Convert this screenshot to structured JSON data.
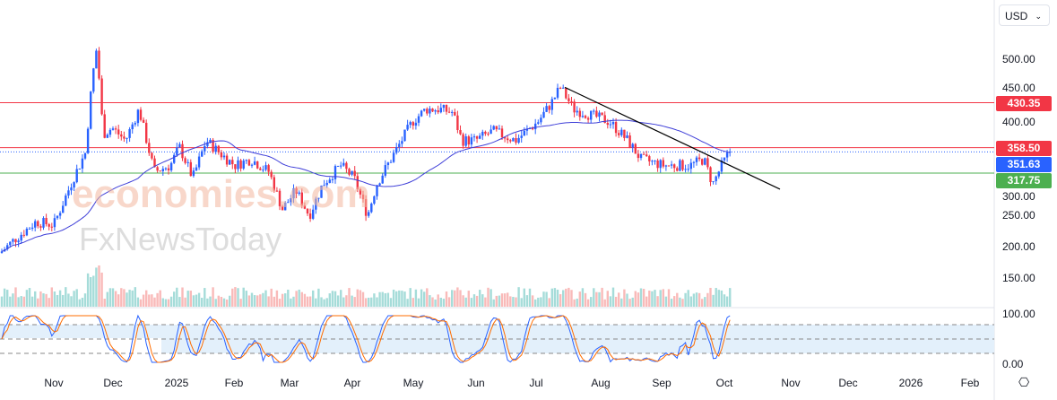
{
  "currency_selector": {
    "value": "USD"
  },
  "y_axis_ticks": [
    "500.00",
    "450.00",
    "400.00",
    "300.00",
    "250.00",
    "200.00",
    "150.00"
  ],
  "osc_axis_ticks": [
    "100.00",
    "0.00"
  ],
  "x_axis_ticks": [
    "Nov",
    "Dec",
    "2025",
    "Feb",
    "Mar",
    "Apr",
    "May",
    "Jun",
    "Jul",
    "Aug",
    "Sep",
    "Oct",
    "Nov",
    "Dec",
    "2026",
    "Feb"
  ],
  "price_labels": [
    {
      "value": "430.35",
      "price": 430.35,
      "color": "#f23645"
    },
    {
      "value": "358.50",
      "price": 358.5,
      "color": "#f23645"
    },
    {
      "value": "351.63",
      "price": 351.63,
      "color": "#2962ff"
    },
    {
      "value": "317.75",
      "price": 317.75,
      "color": "#4caf50"
    }
  ],
  "watermark": {
    "line1": "economies.com",
    "line2": "FxNewsToday"
  },
  "chart_data": {
    "type": "candlestick",
    "price_anchors": [
      [
        0,
        190
      ],
      [
        15,
        210
      ],
      [
        40,
        240
      ],
      [
        60,
        235
      ],
      [
        82,
        310
      ],
      [
        95,
        350
      ],
      [
        103,
        470
      ],
      [
        108,
        520
      ],
      [
        115,
        380
      ],
      [
        125,
        390
      ],
      [
        140,
        370
      ],
      [
        155,
        420
      ],
      [
        172,
        320
      ],
      [
        190,
        330
      ],
      [
        200,
        360
      ],
      [
        215,
        310
      ],
      [
        230,
        370
      ],
      [
        245,
        350
      ],
      [
        262,
        330
      ],
      [
        280,
        340
      ],
      [
        300,
        320
      ],
      [
        315,
        260
      ],
      [
        330,
        290
      ],
      [
        345,
        250
      ],
      [
        360,
        300
      ],
      [
        380,
        330
      ],
      [
        395,
        310
      ],
      [
        410,
        250
      ],
      [
        420,
        300
      ],
      [
        440,
        350
      ],
      [
        460,
        400
      ],
      [
        475,
        420
      ],
      [
        490,
        420
      ],
      [
        505,
        415
      ],
      [
        515,
        370
      ],
      [
        530,
        370
      ],
      [
        550,
        385
      ],
      [
        575,
        370
      ],
      [
        600,
        400
      ],
      [
        615,
        430
      ],
      [
        625,
        455
      ],
      [
        640,
        420
      ],
      [
        660,
        410
      ],
      [
        680,
        400
      ],
      [
        700,
        370
      ],
      [
        715,
        340
      ],
      [
        740,
        330
      ],
      [
        770,
        330
      ],
      [
        785,
        340
      ],
      [
        795,
        300
      ],
      [
        805,
        330
      ],
      [
        815,
        355
      ]
    ],
    "ylim": [
      100,
      540
    ],
    "resistance": [
      430.35,
      358.5
    ],
    "support": [
      317.75
    ],
    "trendline": [
      [
        630,
        455
      ],
      [
        870,
        292
      ]
    ],
    "colors": {
      "up": "#2962ff",
      "down": "#f23645",
      "ma": "#3f3fd8"
    }
  }
}
